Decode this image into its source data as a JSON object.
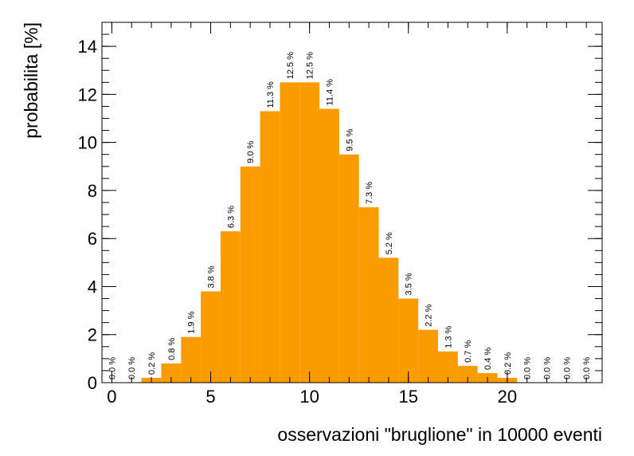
{
  "chart_data": {
    "type": "histogram",
    "xlabel": "osservazioni \"bruglione\" in 10000 eventi",
    "ylabel": "probabilita [%]",
    "bins": [
      -0.5,
      0.5,
      1.5,
      2.5,
      3.5,
      4.5,
      5.5,
      6.5,
      7.5,
      8.5,
      9.5,
      10.5,
      11.5,
      12.5,
      13.5,
      14.5,
      15.5,
      16.5,
      17.5,
      18.5,
      19.5,
      20.5,
      21.5,
      22.5,
      23.5,
      24.5
    ],
    "values": [
      0.0,
      0.0,
      0.2,
      0.8,
      1.9,
      3.8,
      6.3,
      9.0,
      11.3,
      12.5,
      12.5,
      11.4,
      9.5,
      7.3,
      5.2,
      3.5,
      2.2,
      1.3,
      0.7,
      0.4,
      0.2,
      0.0,
      0.0,
      0.0,
      0.0
    ],
    "value_labels": [
      "0.0 %",
      "0.0 %",
      "0.2 %",
      "0.8 %",
      "1.9 %",
      "3.8 %",
      "6.3 %",
      "9.0 %",
      "11.3 %",
      "12.5 %",
      "12.5 %",
      "11.4 %",
      "9.5 %",
      "7.3 %",
      "5.2 %",
      "3.5 %",
      "2.2 %",
      "1.3 %",
      "0.7 %",
      "0.4 %",
      "0.2 %",
      "0.0 %",
      "0.0 %",
      "0.0 %",
      "0.0 %"
    ],
    "color": "#fa9b00",
    "xlim": [
      -0.5,
      24.8
    ],
    "ylim": [
      0,
      15
    ],
    "xticks": [
      0,
      5,
      10,
      15,
      20
    ],
    "yticks": [
      0,
      2,
      4,
      6,
      8,
      10,
      12,
      14
    ]
  }
}
